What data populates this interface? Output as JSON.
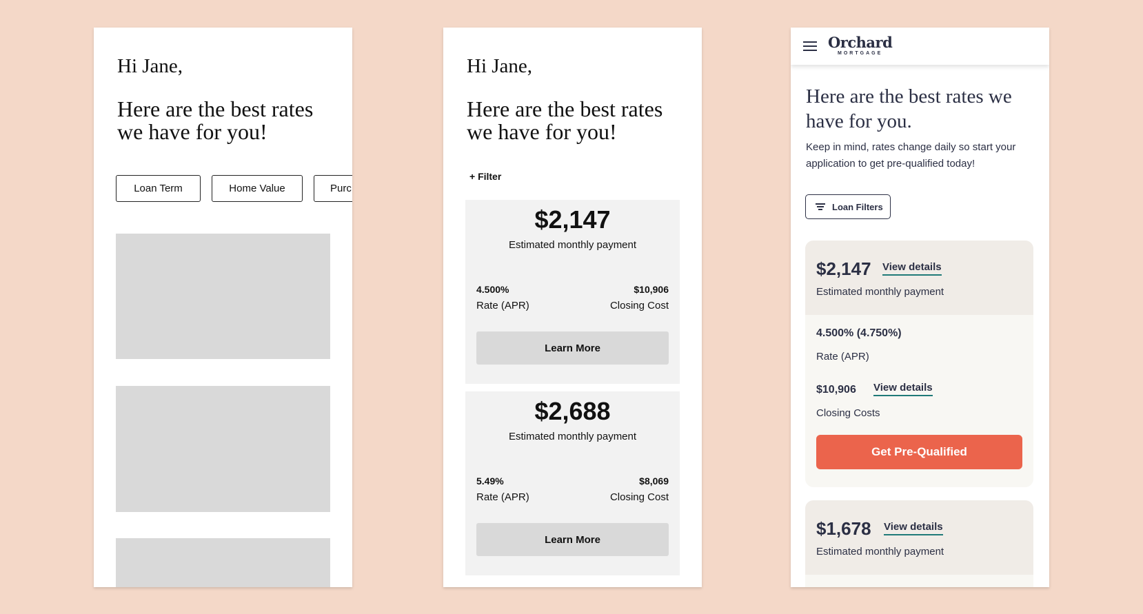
{
  "frame1": {
    "greeting": "Hi Jane,",
    "headline": "Here are the best rates we have for you!",
    "chips": [
      "Loan Term",
      "Home Value",
      "Purc"
    ]
  },
  "frame2": {
    "greeting": "Hi Jane,",
    "headline": "Here are the best rates we have for you!",
    "filter_label": "+ Filter",
    "cards": [
      {
        "amount": "$2,147",
        "amount_label": "Estimated monthly payment",
        "rate": "4.500%",
        "rate_label": "Rate (APR)",
        "closing": "$10,906",
        "closing_label": "Closing Cost",
        "button": "Learn More"
      },
      {
        "amount": "$2,688",
        "amount_label": "Estimated monthly payment",
        "rate": "5.49%",
        "rate_label": "Rate (APR)",
        "closing": "$8,069",
        "closing_label": "Closing Cost",
        "button": "Learn More"
      }
    ]
  },
  "frame3": {
    "brand": "Orchard",
    "brand_sub": "MORTGAGE",
    "headline": "Here are the best rates we have for you.",
    "note": "Keep in mind, rates change daily so start your application to get pre-qualified today!",
    "filters_label": "Loan Filters",
    "offers": [
      {
        "amount": "$2,147",
        "view_details": "View details",
        "amount_label": "Estimated monthly payment",
        "rate": "4.500% (4.750%)",
        "rate_label": "Rate (APR)",
        "closing": "$10,906",
        "closing_view": "View details",
        "closing_label": "Closing Costs",
        "cta": "Get Pre-Qualified"
      },
      {
        "amount": "$1,678",
        "view_details": "View details",
        "amount_label": "Estimated monthly payment"
      }
    ]
  },
  "colors": {
    "background": "#f4d8c8",
    "cta": "#eb644c",
    "link_underline": "#1f7a78",
    "ink": "#2b2f44"
  }
}
